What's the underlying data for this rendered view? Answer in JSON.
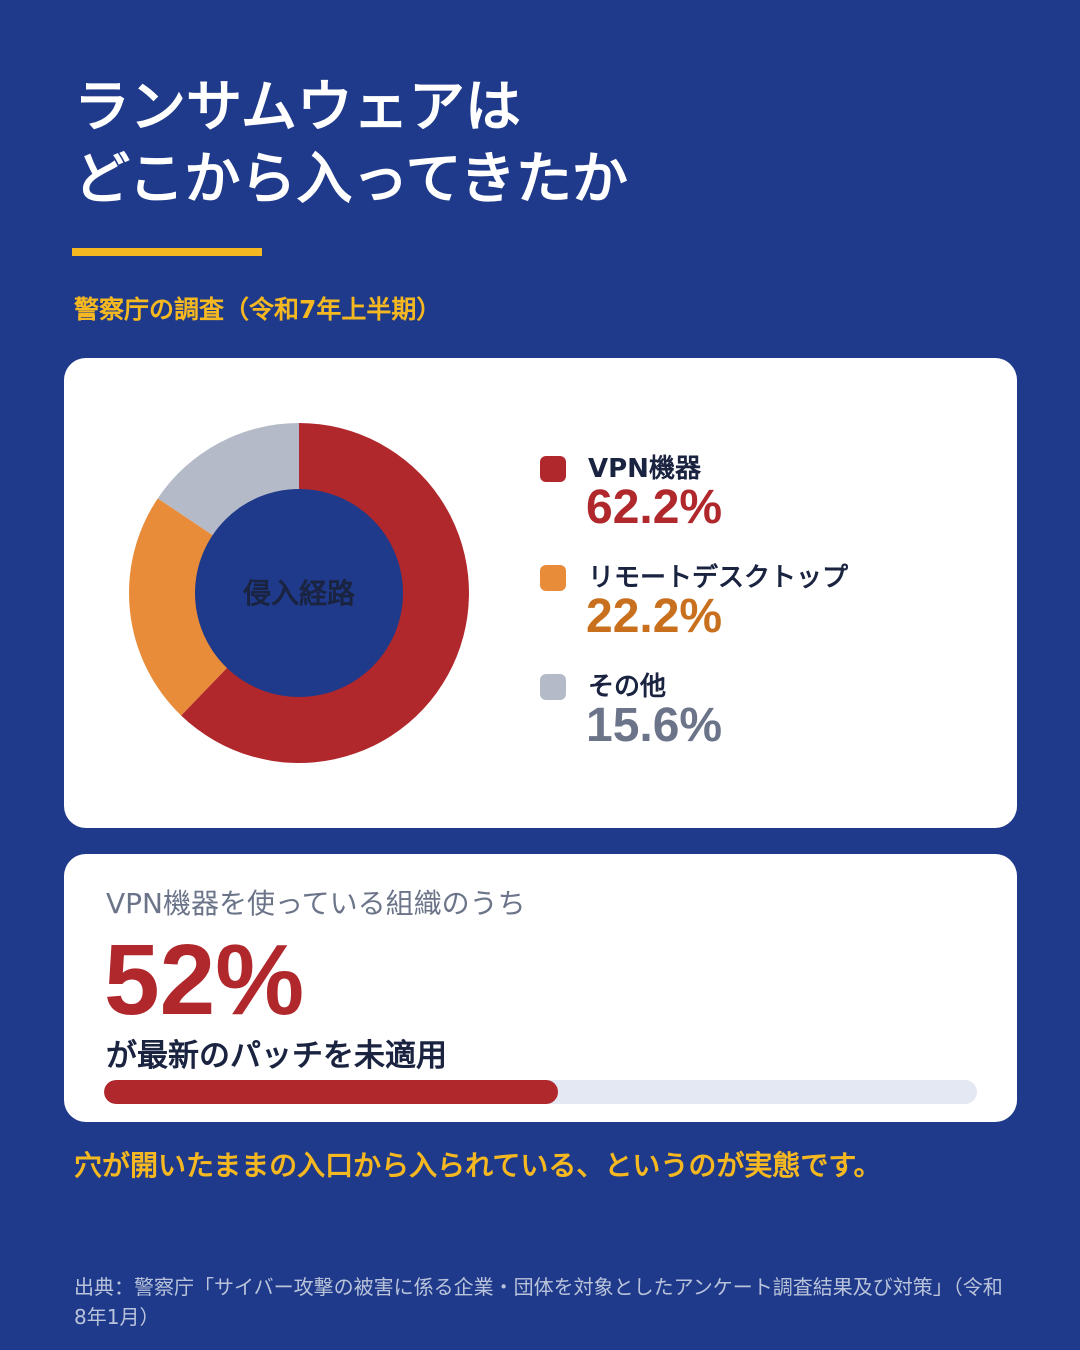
{
  "header": {
    "title_line1": "ランサムウェアは",
    "title_line2": "どこから入ってきたか",
    "subtitle": "警察庁の調査（令和7年上半期）"
  },
  "colors": {
    "background": "#1f3a8a",
    "accent_yellow": "#f5b820",
    "vpn": "#b0282c",
    "remote": "#e88c3a",
    "other": "#b5bac8"
  },
  "chart_data": {
    "type": "pie",
    "donut": true,
    "center_label": "侵入経路",
    "unit": "%",
    "slices": [
      {
        "label": "VPN機器",
        "value": 62.2,
        "value_text": "62.2%",
        "color": "#b0282c",
        "text_color": "#b0282c"
      },
      {
        "label": "リモートデスクトップ",
        "value": 22.2,
        "value_text": "22.2%",
        "color": "#e88c3a",
        "text_color": "#c8701e"
      },
      {
        "label": "その他",
        "value": 15.6,
        "value_text": "15.6%",
        "color": "#b5bac8",
        "text_color": "#6b7489"
      }
    ],
    "legend_position": "right"
  },
  "stat": {
    "lead": "VPN機器を使っている組織のうち",
    "value_text": "52%",
    "value": 52,
    "tail": "が最新のパッチを未適用"
  },
  "conclusion": "穴が開いたままの入口から入られている、というのが実態です。",
  "source": "出典：警察庁「サイバー攻撃の被害に係る企業・団体を対象としたアンケート調査結果及び対策」（令和8年1月）"
}
